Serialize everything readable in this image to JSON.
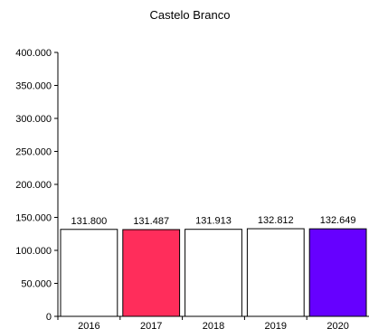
{
  "chart_data": {
    "type": "bar",
    "title": "Castelo Branco",
    "xlabel": "",
    "ylabel": "",
    "categories": [
      "2016",
      "2017",
      "2018",
      "2019",
      "2020"
    ],
    "values": [
      131800,
      131487,
      131913,
      132812,
      132649
    ],
    "value_labels": [
      "131.800",
      "131.487",
      "131.913",
      "132.812",
      "132.649"
    ],
    "bar_colors": [
      "#ffffff",
      "#ff2d5b",
      "#ffffff",
      "#ffffff",
      "#6600ff"
    ],
    "ylim": [
      0,
      400000
    ],
    "yticks": [
      0,
      50000,
      100000,
      150000,
      200000,
      250000,
      300000,
      350000,
      400000
    ],
    "ytick_labels": [
      "0",
      "50.000",
      "100.000",
      "150.000",
      "200.000",
      "250.000",
      "300.000",
      "350.000",
      "400.000"
    ],
    "grid": false,
    "legend": "none"
  }
}
